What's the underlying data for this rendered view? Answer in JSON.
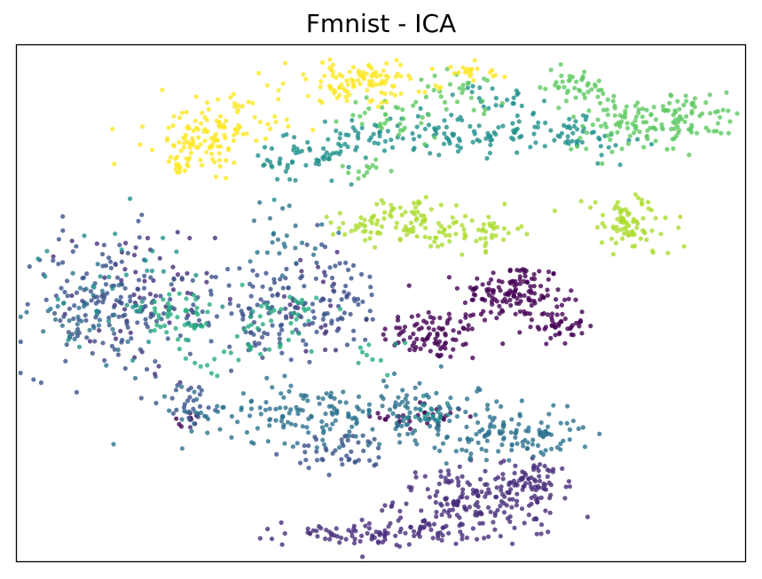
{
  "chart_data": {
    "type": "scatter",
    "title": "Fmnist - ICA",
    "xlabel": "",
    "ylabel": "",
    "grid": false,
    "legend": "none",
    "axis_ticks": false,
    "colormap": "viridis",
    "xlim": [
      0,
      100
    ],
    "ylim": [
      0,
      100
    ],
    "series": [
      {
        "color": "#440154",
        "clusters": [
          {
            "center": [
              57,
              44
            ],
            "spread": [
              3.5,
              2.5
            ],
            "count": 90
          },
          {
            "center": [
              68,
              52
            ],
            "spread": [
              3.5,
              3
            ],
            "count": 130
          },
          {
            "center": [
              74,
              46
            ],
            "spread": [
              2,
              2
            ],
            "count": 50
          },
          {
            "center": [
              56,
              28
            ],
            "spread": [
              3,
              1.5
            ],
            "count": 30
          },
          {
            "center": [
              23.5,
              27.5
            ],
            "spread": [
              1.2,
              0.6
            ],
            "count": 8
          }
        ]
      },
      {
        "color": "#472d7b",
        "clusters": [
          {
            "center": [
              63,
              12
            ],
            "spread": [
              5.5,
              3
            ],
            "count": 170
          },
          {
            "center": [
              71,
              15
            ],
            "spread": [
              2.5,
              2.5
            ],
            "count": 60
          },
          {
            "center": [
              51,
              5.5
            ],
            "spread": [
              7,
              1.2
            ],
            "count": 110
          },
          {
            "center": [
              17,
              50
            ],
            "spread": [
              5,
              8
            ],
            "count": 60
          },
          {
            "center": [
              41,
              49
            ],
            "spread": [
              4,
              5
            ],
            "count": 30
          }
        ]
      },
      {
        "color": "#3b528b",
        "clusters": [
          {
            "center": [
              12,
              50
            ],
            "spread": [
              5.5,
              7
            ],
            "count": 150
          },
          {
            "center": [
              33,
              48
            ],
            "spread": [
              5,
              5
            ],
            "count": 110
          },
          {
            "center": [
              44,
              51
            ],
            "spread": [
              3.5,
              5
            ],
            "count": 60
          },
          {
            "center": [
              24,
              31
            ],
            "spread": [
              2,
              2
            ],
            "count": 25
          },
          {
            "center": [
              45,
              21
            ],
            "spread": [
              3.5,
              2
            ],
            "count": 45
          }
        ]
      },
      {
        "color": "#2c728e",
        "clusters": [
          {
            "center": [
              39,
              29
            ],
            "spread": [
              8,
              3
            ],
            "count": 150
          },
          {
            "center": [
              55,
              30
            ],
            "spread": [
              3,
              3
            ],
            "count": 40
          },
          {
            "center": [
              62,
              26
            ],
            "spread": [
              7,
              3
            ],
            "count": 90
          },
          {
            "center": [
              70,
              24
            ],
            "spread": [
              4,
              2.5
            ],
            "count": 60
          },
          {
            "center": [
              9,
              47
            ],
            "spread": [
              3.5,
              4
            ],
            "count": 40
          },
          {
            "center": [
              37,
              64
            ],
            "spread": [
              2.5,
              4
            ],
            "count": 25
          }
        ]
      },
      {
        "color": "#21918c",
        "clusters": [
          {
            "center": [
              40,
              78
            ],
            "spread": [
              4,
              3
            ],
            "count": 60
          },
          {
            "center": [
              47,
              82
            ],
            "spread": [
              2.5,
              1.5
            ],
            "count": 25
          },
          {
            "center": [
              61,
              83
            ],
            "spread": [
              6,
              2
            ],
            "count": 90
          },
          {
            "center": [
              77,
              83
            ],
            "spread": [
              4,
              2.5
            ],
            "count": 50
          },
          {
            "center": [
              65,
              90
            ],
            "spread": [
              2.5,
              1.2
            ],
            "count": 20
          },
          {
            "center": [
              15,
              53
            ],
            "spread": [
              6,
              6
            ],
            "count": 40
          },
          {
            "center": [
              56,
              29
            ],
            "spread": [
              2,
              2
            ],
            "count": 15
          }
        ]
      },
      {
        "color": "#27ad81",
        "clusters": [
          {
            "center": [
              22,
              47
            ],
            "spread": [
              2.5,
              3.5
            ],
            "count": 45
          },
          {
            "center": [
              37,
              48
            ],
            "spread": [
              3,
              3
            ],
            "count": 35
          },
          {
            "center": [
              30,
              40
            ],
            "spread": [
              4,
              2
            ],
            "count": 20
          },
          {
            "center": [
              49,
              40
            ],
            "spread": [
              1.5,
              2
            ],
            "count": 10
          }
        ]
      },
      {
        "color": "#5ec962",
        "clusters": [
          {
            "center": [
              92,
              86
            ],
            "spread": [
              3.5,
              2.5
            ],
            "count": 80
          },
          {
            "center": [
              83,
              85
            ],
            "spread": [
              4,
              3
            ],
            "count": 70
          },
          {
            "center": [
              76,
              92
            ],
            "spread": [
              3,
              1.8
            ],
            "count": 40
          },
          {
            "center": [
              61,
              91
            ],
            "spread": [
              3,
              2
            ],
            "count": 30
          },
          {
            "center": [
              52,
              86
            ],
            "spread": [
              3.5,
              2
            ],
            "count": 30
          },
          {
            "center": [
              48,
              76
            ],
            "spread": [
              2,
              1.2
            ],
            "count": 12
          }
        ]
      },
      {
        "color": "#addc30",
        "clusters": [
          {
            "center": [
              54,
              66
            ],
            "spread": [
              4,
              2.5
            ],
            "count": 70
          },
          {
            "center": [
              63,
              64
            ],
            "spread": [
              3,
              1.8
            ],
            "count": 50
          },
          {
            "center": [
              47,
              65
            ],
            "spread": [
              3.5,
              1.5
            ],
            "count": 25
          },
          {
            "center": [
              84,
              65
            ],
            "spread": [
              3,
              3
            ],
            "count": 80
          }
        ]
      },
      {
        "color": "#fde725",
        "clusters": [
          {
            "center": [
              27,
              83
            ],
            "spread": [
              4.5,
              3.5
            ],
            "count": 120
          },
          {
            "center": [
              47,
              93
            ],
            "spread": [
              5,
              2
            ],
            "count": 110
          },
          {
            "center": [
              62,
              94.5
            ],
            "spread": [
              3,
              1
            ],
            "count": 20
          },
          {
            "center": [
              23,
              78
            ],
            "spread": [
              2,
              2
            ],
            "count": 25
          }
        ]
      }
    ]
  }
}
